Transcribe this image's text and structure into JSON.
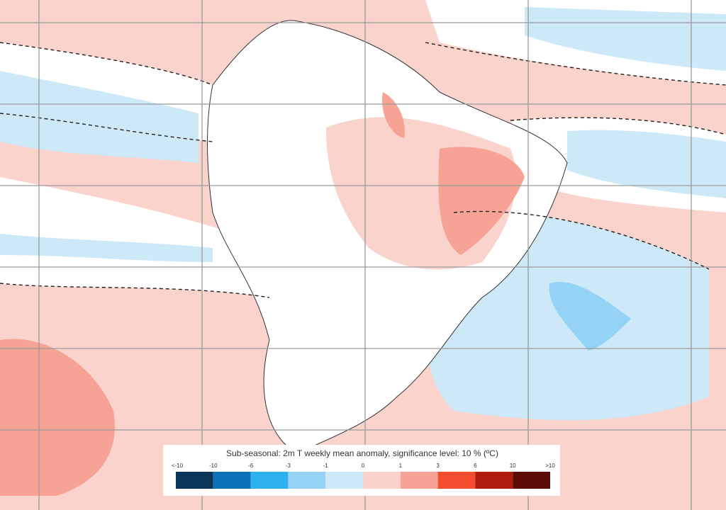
{
  "legend": {
    "title": "Sub-seasonal: 2m T weekly mean anomaly, significance level: 10 % (ºC)",
    "labels": [
      "<-10",
      "-10",
      "-6",
      "-3",
      "-1",
      "0",
      "1",
      "3",
      "6",
      "10",
      ">10"
    ],
    "colors": [
      "#0b3558",
      "#0a72b8",
      "#2db1ee",
      "#94d3f5",
      "#cde9f8",
      "#fbd2cb",
      "#f6a396",
      "#f54d30",
      "#b01c0c",
      "#5c0c07"
    ]
  }
}
